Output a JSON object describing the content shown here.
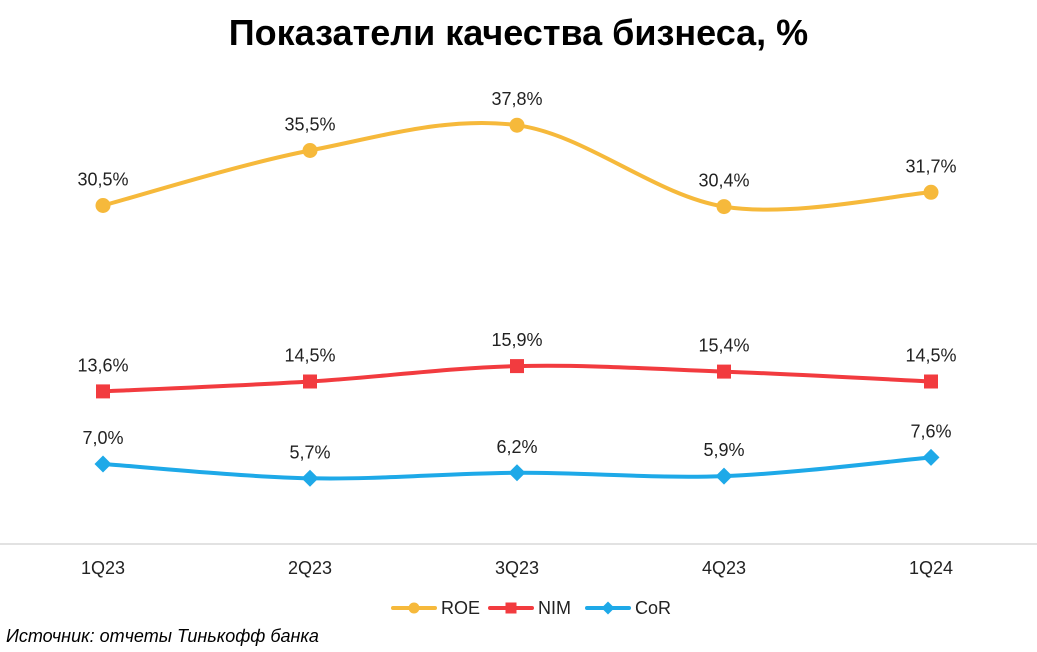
{
  "chart_data": {
    "type": "line",
    "title": "Показатели качества бизнеса, %",
    "categories": [
      "1Q23",
      "2Q23",
      "3Q23",
      "4Q23",
      "1Q24"
    ],
    "series": [
      {
        "name": "ROE",
        "color": "#F6B93B",
        "marker": "circle",
        "values": [
          30.5,
          35.5,
          37.8,
          30.4,
          31.7
        ],
        "labels": [
          "30,5%",
          "35,5%",
          "37,8%",
          "30,4%",
          "31,7%"
        ]
      },
      {
        "name": "NIM",
        "color": "#F23B3F",
        "marker": "square",
        "values": [
          13.6,
          14.5,
          15.9,
          15.4,
          14.5
        ],
        "labels": [
          "13,6%",
          "14,5%",
          "15,9%",
          "15,4%",
          "14,5%"
        ]
      },
      {
        "name": "CoR",
        "color": "#1EA9E8",
        "marker": "diamond",
        "values": [
          7.0,
          5.7,
          6.2,
          5.9,
          7.6
        ],
        "labels": [
          "7,0%",
          "5,7%",
          "6,2%",
          "5,9%",
          "7,6%"
        ]
      }
    ],
    "xlabel": "",
    "ylabel": "",
    "ylim": [
      0,
      40
    ],
    "grid": false,
    "legend_position": "bottom"
  },
  "source_note": "Источник: отчеты Тинькофф банка"
}
